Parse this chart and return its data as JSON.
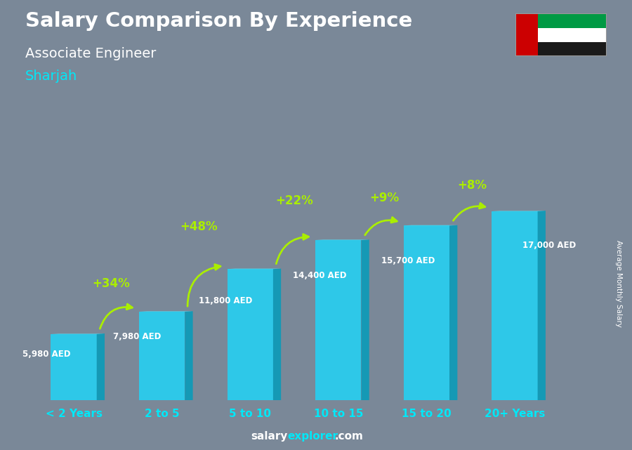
{
  "categories": [
    "< 2 Years",
    "2 to 5",
    "5 to 10",
    "10 to 15",
    "15 to 20",
    "20+ Years"
  ],
  "values": [
    5980,
    7980,
    11800,
    14400,
    15700,
    17000
  ],
  "bar_face_color": "#2ec8e8",
  "bar_side_color": "#1599b5",
  "bar_top_color": "#55ddf5",
  "title": "Salary Comparison By Experience",
  "subtitle": "Associate Engineer",
  "location": "Sharjah",
  "ylabel": "Average Monthly Salary",
  "salary_labels": [
    "5,980 AED",
    "7,980 AED",
    "11,800 AED",
    "14,400 AED",
    "15,700 AED",
    "17,000 AED"
  ],
  "pct_labels": [
    "+34%",
    "+48%",
    "+22%",
    "+9%",
    "+8%"
  ],
  "pct_color": "#aaee00",
  "bg_color": "#7a8898",
  "tick_color": "#00e8f8",
  "bar_width": 0.52,
  "side_depth": 0.09,
  "ylim": [
    0,
    21000
  ],
  "xlim": [
    -0.55,
    5.9
  ]
}
